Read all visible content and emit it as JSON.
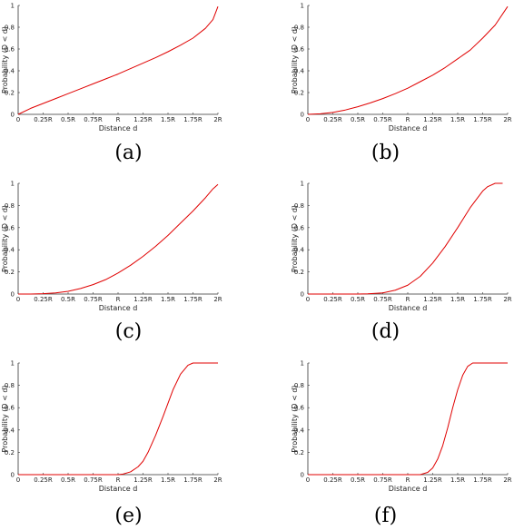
{
  "chart_data": [
    {
      "type": "line",
      "panel_label": "(a)",
      "xlabel": "Distance d",
      "ylabel": "Probability (D < d)",
      "xlim": [
        0,
        2
      ],
      "ylim": [
        0,
        1
      ],
      "x_tick_values": [
        0,
        0.25,
        0.5,
        0.75,
        1,
        1.25,
        1.5,
        1.75,
        2
      ],
      "x_tick_labels": [
        "0",
        "0.25R",
        "0.5R",
        "0.75R",
        "R",
        "1.25R",
        "1.5R",
        "1.75R",
        "2R"
      ],
      "y_tick_values": [
        0,
        0.2,
        0.4,
        0.6,
        0.8,
        1
      ],
      "y_tick_labels": [
        "0",
        "0.2",
        "0.4",
        "0.6",
        "0.8",
        "1"
      ],
      "grid": false,
      "color": "#e00000",
      "series": [
        {
          "x": [
            0,
            0.125,
            0.25,
            0.375,
            0.5,
            0.625,
            0.75,
            0.875,
            1,
            1.125,
            1.25,
            1.375,
            1.5,
            1.625,
            1.75,
            1.875,
            1.95,
            2
          ],
          "y": [
            0,
            0.055,
            0.1,
            0.145,
            0.19,
            0.235,
            0.28,
            0.325,
            0.37,
            0.42,
            0.47,
            0.52,
            0.575,
            0.635,
            0.7,
            0.79,
            0.87,
            0.99
          ]
        }
      ]
    },
    {
      "type": "line",
      "panel_label": "(b)",
      "xlabel": "Distance d",
      "ylabel": "Probability (D < d)",
      "xlim": [
        0,
        2
      ],
      "ylim": [
        0,
        1
      ],
      "x_tick_values": [
        0,
        0.25,
        0.5,
        0.75,
        1,
        1.25,
        1.5,
        1.75,
        2
      ],
      "x_tick_labels": [
        "0",
        "0.25R",
        "0.5R",
        "0.75R",
        "R",
        "1.25R",
        "1.5R",
        "1.75R",
        "2R"
      ],
      "y_tick_values": [
        0,
        0.2,
        0.4,
        0.6,
        0.8,
        1
      ],
      "y_tick_labels": [
        "0",
        "0.2",
        "0.4",
        "0.6",
        "0.8",
        "1"
      ],
      "grid": false,
      "color": "#e00000",
      "series": [
        {
          "x": [
            0,
            0.125,
            0.25,
            0.375,
            0.5,
            0.625,
            0.75,
            0.875,
            1,
            1.125,
            1.25,
            1.375,
            1.5,
            1.625,
            1.75,
            1.875,
            2
          ],
          "y": [
            0,
            0.005,
            0.018,
            0.04,
            0.07,
            0.105,
            0.145,
            0.19,
            0.24,
            0.3,
            0.36,
            0.43,
            0.51,
            0.59,
            0.7,
            0.82,
            0.99
          ]
        }
      ]
    },
    {
      "type": "line",
      "panel_label": "(c)",
      "xlabel": "Distance d",
      "ylabel": "Probability (D < d)",
      "xlim": [
        0,
        2
      ],
      "ylim": [
        0,
        1
      ],
      "x_tick_values": [
        0,
        0.25,
        0.5,
        0.75,
        1,
        1.25,
        1.5,
        1.75,
        2
      ],
      "x_tick_labels": [
        "0",
        "0.25R",
        "0.5R",
        "0.75R",
        "R",
        "1.25R",
        "1.5R",
        "1.75R",
        "2R"
      ],
      "y_tick_values": [
        0,
        0.2,
        0.4,
        0.6,
        0.8,
        1
      ],
      "y_tick_labels": [
        "0",
        "0.2",
        "0.4",
        "0.6",
        "0.8",
        "1"
      ],
      "grid": false,
      "color": "#e00000",
      "series": [
        {
          "x": [
            0,
            0.125,
            0.25,
            0.375,
            0.5,
            0.625,
            0.75,
            0.875,
            1,
            1.125,
            1.25,
            1.375,
            1.5,
            1.625,
            1.75,
            1.875,
            1.95,
            2
          ],
          "y": [
            0,
            0,
            0.003,
            0.01,
            0.025,
            0.05,
            0.085,
            0.13,
            0.19,
            0.26,
            0.34,
            0.43,
            0.53,
            0.64,
            0.75,
            0.87,
            0.95,
            0.99
          ]
        }
      ]
    },
    {
      "type": "line",
      "panel_label": "(d)",
      "xlabel": "Distance d",
      "ylabel": "Probability (D < d)",
      "xlim": [
        0,
        2
      ],
      "ylim": [
        0,
        1
      ],
      "x_tick_values": [
        0,
        0.25,
        0.5,
        0.75,
        1,
        1.25,
        1.5,
        1.75,
        2
      ],
      "x_tick_labels": [
        "0",
        "0.25R",
        "0.5R",
        "0.75R",
        "R",
        "1.25R",
        "1.5R",
        "1.75R",
        "2R"
      ],
      "y_tick_values": [
        0,
        0.2,
        0.4,
        0.6,
        0.8,
        1
      ],
      "y_tick_labels": [
        "0",
        "0.2",
        "0.4",
        "0.6",
        "0.8",
        "1"
      ],
      "grid": false,
      "color": "#e00000",
      "series": [
        {
          "x": [
            0,
            0.25,
            0.5,
            0.6,
            0.75,
            0.875,
            1,
            1.125,
            1.25,
            1.375,
            1.5,
            1.625,
            1.75,
            1.8,
            1.875,
            1.95
          ],
          "y": [
            0,
            0,
            0,
            0.002,
            0.01,
            0.035,
            0.08,
            0.16,
            0.28,
            0.43,
            0.6,
            0.78,
            0.93,
            0.97,
            1,
            1
          ]
        }
      ]
    },
    {
      "type": "line",
      "panel_label": "(e)",
      "xlabel": "Distance d",
      "ylabel": "Probability (D < d)",
      "xlim": [
        0,
        2
      ],
      "ylim": [
        0,
        1
      ],
      "x_tick_values": [
        0,
        0.25,
        0.5,
        0.75,
        1,
        1.25,
        1.5,
        1.75,
        2
      ],
      "x_tick_labels": [
        "0",
        "0.25R",
        "0.5R",
        "0.75R",
        "R",
        "1.25R",
        "1.5R",
        "1.75R",
        "2R"
      ],
      "y_tick_values": [
        0,
        0.2,
        0.4,
        0.6,
        0.8,
        1
      ],
      "y_tick_labels": [
        "0",
        "0.2",
        "0.4",
        "0.6",
        "0.8",
        "1"
      ],
      "grid": false,
      "color": "#e00000",
      "series": [
        {
          "x": [
            0,
            0.5,
            1,
            1.05,
            1.125,
            1.2,
            1.25,
            1.3,
            1.375,
            1.45,
            1.5,
            1.55,
            1.625,
            1.7,
            1.75,
            1.875,
            2
          ],
          "y": [
            0,
            0,
            0,
            0.005,
            0.025,
            0.07,
            0.12,
            0.2,
            0.35,
            0.52,
            0.64,
            0.76,
            0.9,
            0.98,
            1,
            1,
            1
          ]
        }
      ]
    },
    {
      "type": "line",
      "panel_label": "(f)",
      "xlabel": "Distance d",
      "ylabel": "Probability (D < d)",
      "xlim": [
        0,
        2
      ],
      "ylim": [
        0,
        1
      ],
      "x_tick_values": [
        0,
        0.25,
        0.5,
        0.75,
        1,
        1.25,
        1.5,
        1.75,
        2
      ],
      "x_tick_labels": [
        "0",
        "0.25R",
        "0.5R",
        "0.75R",
        "R",
        "1.25R",
        "1.5R",
        "1.75R",
        "2R"
      ],
      "y_tick_values": [
        0,
        0.2,
        0.4,
        0.6,
        0.8,
        1
      ],
      "y_tick_labels": [
        "0",
        "0.2",
        "0.4",
        "0.6",
        "0.8",
        "1"
      ],
      "grid": false,
      "color": "#e00000",
      "series": [
        {
          "x": [
            0,
            0.5,
            1,
            1.125,
            1.2,
            1.25,
            1.3,
            1.35,
            1.4,
            1.45,
            1.5,
            1.55,
            1.6,
            1.65,
            1.7,
            1.75,
            2
          ],
          "y": [
            0,
            0,
            0,
            0,
            0.02,
            0.06,
            0.14,
            0.26,
            0.42,
            0.6,
            0.76,
            0.89,
            0.97,
            1,
            1,
            1,
            1
          ]
        }
      ]
    }
  ]
}
